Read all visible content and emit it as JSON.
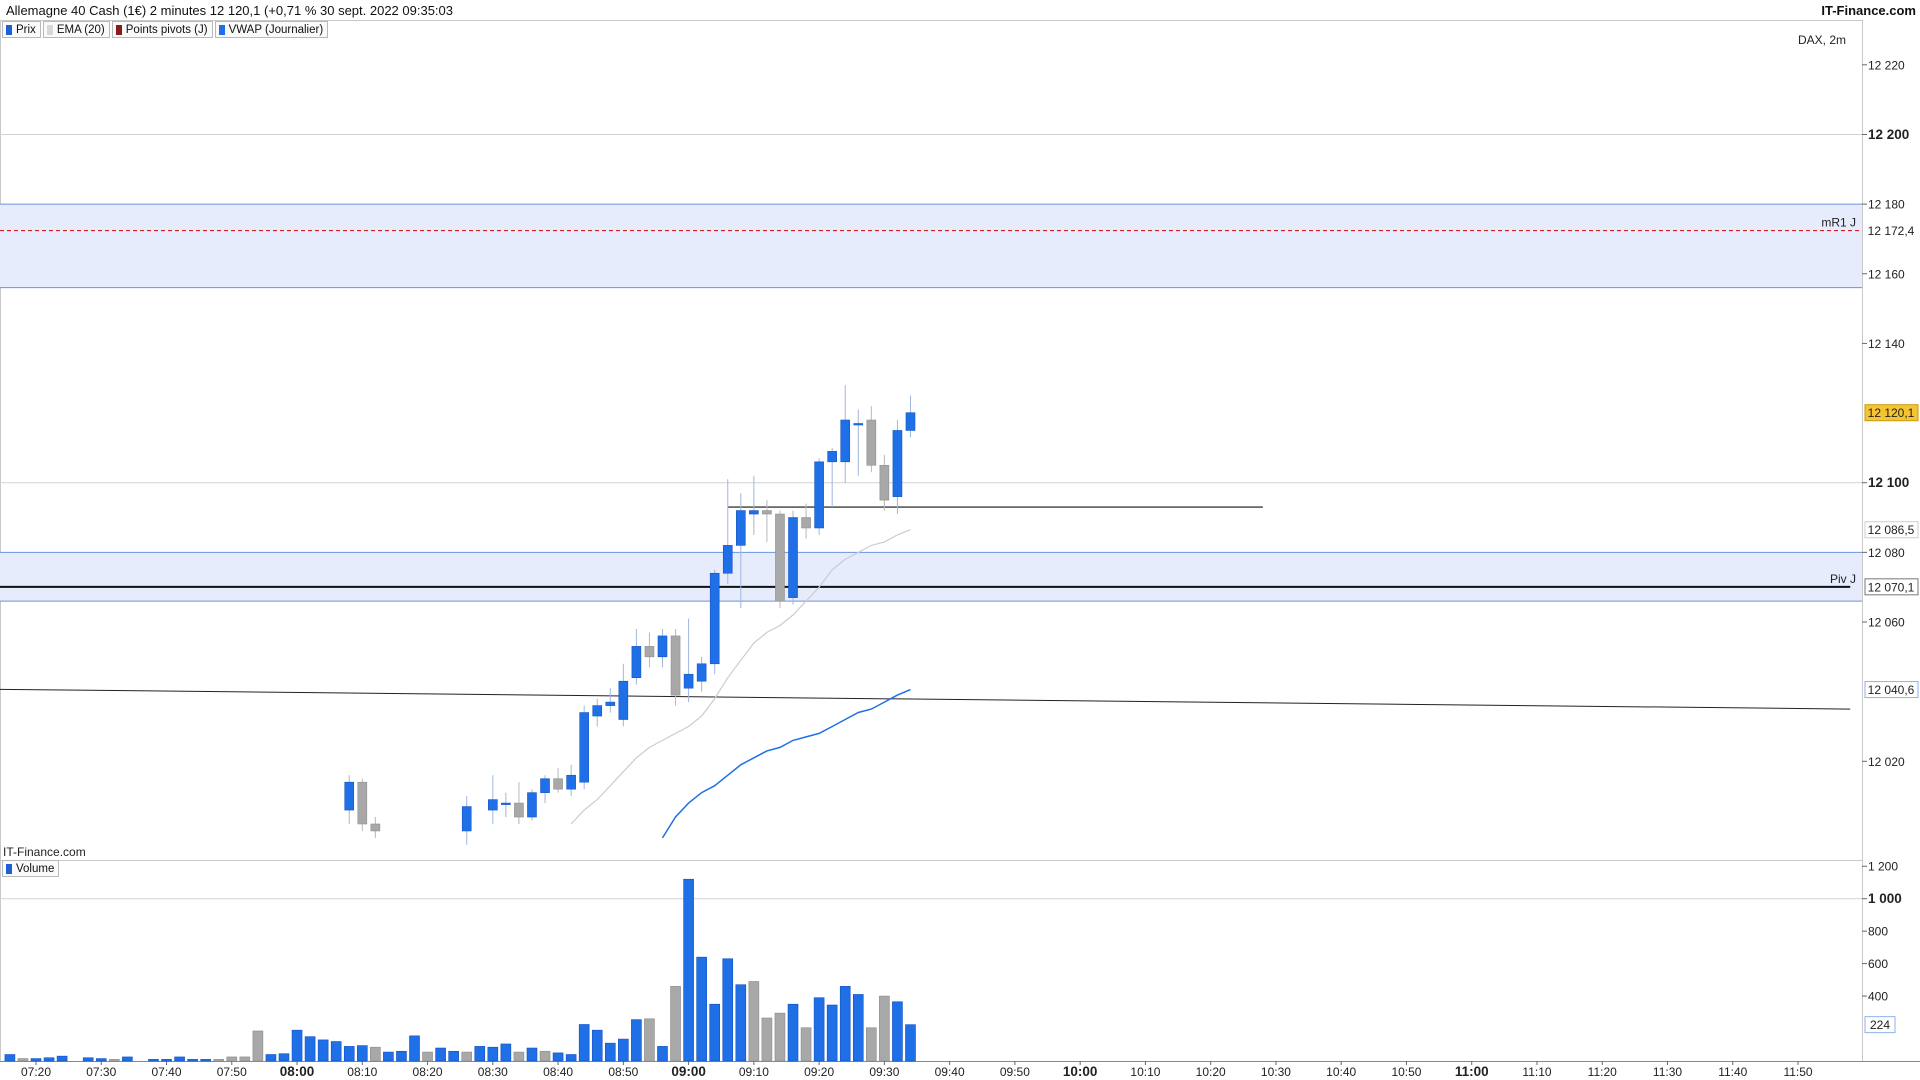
{
  "header": {
    "title": "Allemagne 40 Cash (1€) 2 minutes 12 120,1 (+0,71 % 30 sept. 2022 09:35:03",
    "brand": "IT-Finance.com"
  },
  "price_legend": [
    {
      "label": "Prix",
      "color": "#1f5fd1"
    },
    {
      "label": "EMA (20)",
      "color": "#d8d8d8"
    },
    {
      "label": "Points pivots (J)",
      "color": "#8b1a1a"
    },
    {
      "label": "VWAP (Journalier)",
      "color": "#1f6fe6"
    }
  ],
  "volume_legend": [
    {
      "label": "Volume",
      "color": "#1f5fd1"
    }
  ],
  "watermark": "DAX, 2m",
  "chart_brand": "IT-Finance.com",
  "colors": {
    "up": "#1f6fe6",
    "down": "#a8a8a8",
    "band_fill": "#e6ecfc",
    "band_edge": "#6d93de",
    "pivot_line": "#d11f1f",
    "price_tag": "#f5c431",
    "vwap": "#1f6fe6",
    "ema": "#cccccc"
  },
  "chart_data": [
    {
      "type": "candlestick",
      "y_ticks": [
        {
          "value": 12220,
          "label": "12 220",
          "bold": false
        },
        {
          "value": 12200,
          "label": "12 200",
          "bold": true
        },
        {
          "value": 12180,
          "label": "12 180",
          "bold": false
        },
        {
          "value": 12160,
          "label": "12 160",
          "bold": false
        },
        {
          "value": 12140,
          "label": "12 140",
          "bold": false
        },
        {
          "value": 12100,
          "label": "12 100",
          "bold": true
        },
        {
          "value": 12080,
          "label": "12 080",
          "bold": false
        },
        {
          "value": 12060,
          "label": "12 060",
          "bold": false
        },
        {
          "value": 12020,
          "label": "12 020",
          "bold": false
        }
      ],
      "x_ticks": [
        {
          "label": "07:20",
          "bold": false
        },
        {
          "label": "07:30",
          "bold": false
        },
        {
          "label": "07:40",
          "bold": false
        },
        {
          "label": "07:50",
          "bold": false
        },
        {
          "label": "08:00",
          "bold": true
        },
        {
          "label": "08:10",
          "bold": false
        },
        {
          "label": "08:20",
          "bold": false
        },
        {
          "label": "08:30",
          "bold": false
        },
        {
          "label": "08:40",
          "bold": false
        },
        {
          "label": "08:50",
          "bold": false
        },
        {
          "label": "09:00",
          "bold": true
        },
        {
          "label": "09:10",
          "bold": false
        },
        {
          "label": "09:20",
          "bold": false
        },
        {
          "label": "09:30",
          "bold": false
        },
        {
          "label": "09:40",
          "bold": false
        },
        {
          "label": "09:50",
          "bold": false
        },
        {
          "label": "10:00",
          "bold": true
        },
        {
          "label": "10:10",
          "bold": false
        },
        {
          "label": "10:20",
          "bold": false
        },
        {
          "label": "10:30",
          "bold": false
        },
        {
          "label": "10:40",
          "bold": false
        },
        {
          "label": "10:50",
          "bold": false
        },
        {
          "label": "11:00",
          "bold": true
        },
        {
          "label": "11:10",
          "bold": false
        },
        {
          "label": "11:20",
          "bold": false
        },
        {
          "label": "11:30",
          "bold": false
        },
        {
          "label": "11:40",
          "bold": false
        },
        {
          "label": "11:50",
          "bold": false
        }
      ],
      "price_markers": [
        {
          "value": 12172.4,
          "label": "12 172,4",
          "name": "mR1 J",
          "style": "pivot"
        },
        {
          "value": 12120.1,
          "label": "12 120,1",
          "name": "",
          "style": "last"
        },
        {
          "value": 12086.5,
          "label": "12 086,5",
          "name": "",
          "style": "ema"
        },
        {
          "value": 12070.1,
          "label": "12 070,1",
          "name": "Piv J",
          "style": "pivot-black"
        },
        {
          "value": 12040.6,
          "label": "12 040,6",
          "name": "",
          "style": "vwap"
        }
      ],
      "zones": [
        {
          "from": 12156,
          "to": 12180
        },
        {
          "from": 12066,
          "to": 12080
        }
      ],
      "horizontal_lines": [
        {
          "value": 12070.1,
          "from": "06:58",
          "to": "11:58"
        },
        {
          "value": 12093,
          "from": "09:06",
          "to": "10:28"
        }
      ],
      "trend_line": {
        "from": {
          "time": "06:58",
          "value": 12041
        },
        "to": {
          "time": "11:58",
          "value": 12035
        }
      },
      "candles": [
        {
          "t": "08:08",
          "o": 12006,
          "h": 12016,
          "l": 12002,
          "c": 12014
        },
        {
          "t": "08:10",
          "o": 12014,
          "h": 12015,
          "l": 12000,
          "c": 12002
        },
        {
          "t": "08:12",
          "o": 12002,
          "h": 12004,
          "l": 11998,
          "c": 12000
        },
        {
          "t": "08:26",
          "o": 12000,
          "h": 12010,
          "l": 11996,
          "c": 12007
        },
        {
          "t": "08:30",
          "o": 12006,
          "h": 12016,
          "l": 12002,
          "c": 12009
        },
        {
          "t": "08:32",
          "o": 12008,
          "h": 12011,
          "l": 12004,
          "c": 12008
        },
        {
          "t": "08:34",
          "o": 12008,
          "h": 12014,
          "l": 12002,
          "c": 12004
        },
        {
          "t": "08:36",
          "o": 12004,
          "h": 12012,
          "l": 12003,
          "c": 12011
        },
        {
          "t": "08:38",
          "o": 12011,
          "h": 12016,
          "l": 12008,
          "c": 12015
        },
        {
          "t": "08:40",
          "o": 12015,
          "h": 12018,
          "l": 12011,
          "c": 12012
        },
        {
          "t": "08:42",
          "o": 12012,
          "h": 12019,
          "l": 12010,
          "c": 12016
        },
        {
          "t": "08:44",
          "o": 12014,
          "h": 12036,
          "l": 12012,
          "c": 12034
        },
        {
          "t": "08:46",
          "o": 12033,
          "h": 12038,
          "l": 12030,
          "c": 12036
        },
        {
          "t": "08:48",
          "o": 12036,
          "h": 12041,
          "l": 12034,
          "c": 12037
        },
        {
          "t": "08:50",
          "o": 12032,
          "h": 12048,
          "l": 12030,
          "c": 12043
        },
        {
          "t": "08:52",
          "o": 12044,
          "h": 12058,
          "l": 12042,
          "c": 12053
        },
        {
          "t": "08:54",
          "o": 12053,
          "h": 12057,
          "l": 12047,
          "c": 12050
        },
        {
          "t": "08:56",
          "o": 12050,
          "h": 12058,
          "l": 12047,
          "c": 12056
        },
        {
          "t": "08:58",
          "o": 12056,
          "h": 12058,
          "l": 12036,
          "c": 12039
        },
        {
          "t": "09:00",
          "o": 12041,
          "h": 12061,
          "l": 12037,
          "c": 12045
        },
        {
          "t": "09:02",
          "o": 12043,
          "h": 12050,
          "l": 12040,
          "c": 12048
        },
        {
          "t": "09:04",
          "o": 12048,
          "h": 12075,
          "l": 12045,
          "c": 12074
        },
        {
          "t": "09:06",
          "o": 12074,
          "h": 12101,
          "l": 12071,
          "c": 12082
        },
        {
          "t": "09:08",
          "o": 12082,
          "h": 12097,
          "l": 12064,
          "c": 12092
        },
        {
          "t": "09:10",
          "o": 12091,
          "h": 12102,
          "l": 12085,
          "c": 12092
        },
        {
          "t": "09:12",
          "o": 12092,
          "h": 12095,
          "l": 12083,
          "c": 12091
        },
        {
          "t": "09:14",
          "o": 12091,
          "h": 12092,
          "l": 12064,
          "c": 12066
        },
        {
          "t": "09:16",
          "o": 12067,
          "h": 12092,
          "l": 12065,
          "c": 12090
        },
        {
          "t": "09:18",
          "o": 12090,
          "h": 12094,
          "l": 12084,
          "c": 12087
        },
        {
          "t": "09:20",
          "o": 12087,
          "h": 12107,
          "l": 12085,
          "c": 12106
        },
        {
          "t": "09:22",
          "o": 12106,
          "h": 12110,
          "l": 12093,
          "c": 12109
        },
        {
          "t": "09:24",
          "o": 12106,
          "h": 12128,
          "l": 12100,
          "c": 12118
        },
        {
          "t": "09:26",
          "o": 12117,
          "h": 12121,
          "l": 12102,
          "c": 12117
        },
        {
          "t": "09:28",
          "o": 12118,
          "h": 12122,
          "l": 12103,
          "c": 12105
        },
        {
          "t": "09:30",
          "o": 12105,
          "h": 12108,
          "l": 12092,
          "c": 12095
        },
        {
          "t": "09:32",
          "o": 12096,
          "h": 12118,
          "l": 12091,
          "c": 12115
        },
        {
          "t": "09:34",
          "o": 12115,
          "h": 12125,
          "l": 12113,
          "c": 12120.1
        }
      ],
      "vwap": [
        {
          "t": "08:56",
          "v": 11998
        },
        {
          "t": "08:58",
          "v": 12004
        },
        {
          "t": "09:00",
          "v": 12008
        },
        {
          "t": "09:02",
          "v": 12011
        },
        {
          "t": "09:04",
          "v": 12013
        },
        {
          "t": "09:06",
          "v": 12016
        },
        {
          "t": "09:08",
          "v": 12019
        },
        {
          "t": "09:10",
          "v": 12021
        },
        {
          "t": "09:12",
          "v": 12023
        },
        {
          "t": "09:14",
          "v": 12024
        },
        {
          "t": "09:16",
          "v": 12026
        },
        {
          "t": "09:18",
          "v": 12027
        },
        {
          "t": "09:20",
          "v": 12028
        },
        {
          "t": "09:22",
          "v": 12030
        },
        {
          "t": "09:24",
          "v": 12032
        },
        {
          "t": "09:26",
          "v": 12034
        },
        {
          "t": "09:28",
          "v": 12035
        },
        {
          "t": "09:30",
          "v": 12037
        },
        {
          "t": "09:32",
          "v": 12039
        },
        {
          "t": "09:34",
          "v": 12040.6
        }
      ],
      "ema": [
        {
          "t": "08:42",
          "v": 12002
        },
        {
          "t": "08:44",
          "v": 12006
        },
        {
          "t": "08:46",
          "v": 12009
        },
        {
          "t": "08:48",
          "v": 12013
        },
        {
          "t": "08:50",
          "v": 12017
        },
        {
          "t": "08:52",
          "v": 12021
        },
        {
          "t": "08:54",
          "v": 12024
        },
        {
          "t": "08:56",
          "v": 12026
        },
        {
          "t": "08:58",
          "v": 12028
        },
        {
          "t": "09:00",
          "v": 12030
        },
        {
          "t": "09:02",
          "v": 12033
        },
        {
          "t": "09:04",
          "v": 12038
        },
        {
          "t": "09:06",
          "v": 12044
        },
        {
          "t": "09:08",
          "v": 12049
        },
        {
          "t": "09:10",
          "v": 12054
        },
        {
          "t": "09:12",
          "v": 12057
        },
        {
          "t": "09:14",
          "v": 12059
        },
        {
          "t": "09:16",
          "v": 12062
        },
        {
          "t": "09:18",
          "v": 12066
        },
        {
          "t": "09:20",
          "v": 12070
        },
        {
          "t": "09:22",
          "v": 12075
        },
        {
          "t": "09:24",
          "v": 12078
        },
        {
          "t": "09:26",
          "v": 12080
        },
        {
          "t": "09:28",
          "v": 12082
        },
        {
          "t": "09:30",
          "v": 12083
        },
        {
          "t": "09:32",
          "v": 12085
        },
        {
          "t": "09:34",
          "v": 12086.5
        }
      ]
    },
    {
      "type": "bar",
      "name": "Volume",
      "y_ticks": [
        {
          "value": 1200,
          "label": "1 200",
          "bold": false
        },
        {
          "value": 1000,
          "label": "1 000",
          "bold": true
        },
        {
          "value": 800,
          "label": "800",
          "bold": false
        },
        {
          "value": 600,
          "label": "600",
          "bold": false
        },
        {
          "value": 400,
          "label": "400",
          "bold": false
        }
      ],
      "last": {
        "value": 224,
        "label": "224"
      },
      "bars": [
        {
          "t": "07:16",
          "v": 40,
          "up": true
        },
        {
          "t": "07:18",
          "v": 15,
          "up": false
        },
        {
          "t": "07:20",
          "v": 15,
          "up": true
        },
        {
          "t": "07:22",
          "v": 20,
          "up": true
        },
        {
          "t": "07:24",
          "v": 30,
          "up": true
        },
        {
          "t": "07:28",
          "v": 20,
          "up": true
        },
        {
          "t": "07:30",
          "v": 15,
          "up": true
        },
        {
          "t": "07:32",
          "v": 10,
          "up": false
        },
        {
          "t": "07:34",
          "v": 25,
          "up": true
        },
        {
          "t": "07:38",
          "v": 10,
          "up": true
        },
        {
          "t": "07:40",
          "v": 10,
          "up": true
        },
        {
          "t": "07:42",
          "v": 25,
          "up": true
        },
        {
          "t": "07:44",
          "v": 10,
          "up": true
        },
        {
          "t": "07:46",
          "v": 10,
          "up": true
        },
        {
          "t": "07:48",
          "v": 10,
          "up": false
        },
        {
          "t": "07:50",
          "v": 25,
          "up": false
        },
        {
          "t": "07:52",
          "v": 25,
          "up": false
        },
        {
          "t": "07:54",
          "v": 185,
          "up": false
        },
        {
          "t": "07:56",
          "v": 40,
          "up": true
        },
        {
          "t": "07:58",
          "v": 45,
          "up": true
        },
        {
          "t": "08:00",
          "v": 190,
          "up": true
        },
        {
          "t": "08:02",
          "v": 150,
          "up": true
        },
        {
          "t": "08:04",
          "v": 130,
          "up": true
        },
        {
          "t": "08:06",
          "v": 120,
          "up": true
        },
        {
          "t": "08:08",
          "v": 90,
          "up": true
        },
        {
          "t": "08:10",
          "v": 95,
          "up": true
        },
        {
          "t": "08:12",
          "v": 85,
          "up": false
        },
        {
          "t": "08:14",
          "v": 55,
          "up": true
        },
        {
          "t": "08:16",
          "v": 60,
          "up": true
        },
        {
          "t": "08:18",
          "v": 155,
          "up": true
        },
        {
          "t": "08:20",
          "v": 55,
          "up": false
        },
        {
          "t": "08:22",
          "v": 80,
          "up": true
        },
        {
          "t": "08:24",
          "v": 60,
          "up": true
        },
        {
          "t": "08:26",
          "v": 55,
          "up": false
        },
        {
          "t": "08:28",
          "v": 90,
          "up": true
        },
        {
          "t": "08:30",
          "v": 85,
          "up": true
        },
        {
          "t": "08:32",
          "v": 105,
          "up": true
        },
        {
          "t": "08:34",
          "v": 55,
          "up": false
        },
        {
          "t": "08:36",
          "v": 80,
          "up": true
        },
        {
          "t": "08:38",
          "v": 60,
          "up": false
        },
        {
          "t": "08:40",
          "v": 50,
          "up": true
        },
        {
          "t": "08:42",
          "v": 40,
          "up": true
        },
        {
          "t": "08:44",
          "v": 225,
          "up": true
        },
        {
          "t": "08:46",
          "v": 190,
          "up": true
        },
        {
          "t": "08:48",
          "v": 110,
          "up": true
        },
        {
          "t": "08:50",
          "v": 135,
          "up": true
        },
        {
          "t": "08:52",
          "v": 255,
          "up": true
        },
        {
          "t": "08:54",
          "v": 260,
          "up": false
        },
        {
          "t": "08:56",
          "v": 90,
          "up": true
        },
        {
          "t": "08:58",
          "v": 460,
          "up": false
        },
        {
          "t": "09:00",
          "v": 1120,
          "up": true
        },
        {
          "t": "09:02",
          "v": 640,
          "up": true
        },
        {
          "t": "09:04",
          "v": 350,
          "up": true
        },
        {
          "t": "09:06",
          "v": 630,
          "up": true
        },
        {
          "t": "09:08",
          "v": 470,
          "up": true
        },
        {
          "t": "09:10",
          "v": 490,
          "up": false
        },
        {
          "t": "09:12",
          "v": 265,
          "up": false
        },
        {
          "t": "09:14",
          "v": 295,
          "up": false
        },
        {
          "t": "09:16",
          "v": 350,
          "up": true
        },
        {
          "t": "09:18",
          "v": 205,
          "up": false
        },
        {
          "t": "09:20",
          "v": 390,
          "up": true
        },
        {
          "t": "09:22",
          "v": 345,
          "up": true
        },
        {
          "t": "09:24",
          "v": 460,
          "up": true
        },
        {
          "t": "09:26",
          "v": 410,
          "up": true
        },
        {
          "t": "09:28",
          "v": 205,
          "up": false
        },
        {
          "t": "09:30",
          "v": 400,
          "up": false
        },
        {
          "t": "09:32",
          "v": 365,
          "up": true
        },
        {
          "t": "09:34",
          "v": 224,
          "up": true
        }
      ]
    }
  ]
}
